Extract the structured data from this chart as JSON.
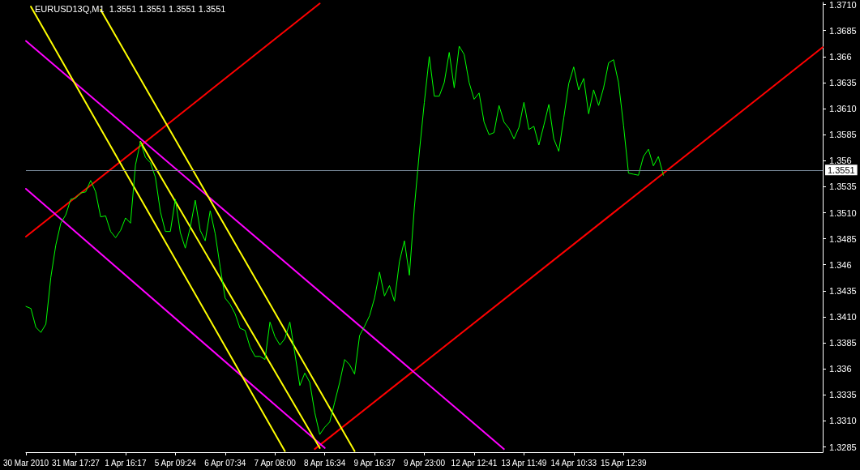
{
  "chart_data": {
    "type": "line",
    "title": "EURUSD13Q,M1  1.3551 1.3551 1.3551 1.3551",
    "categories": [
      "30 Mar 2010",
      null,
      null,
      null,
      null,
      null,
      null,
      null,
      null,
      null,
      "31 Mar 17:27",
      null,
      null,
      null,
      null,
      null,
      null,
      null,
      null,
      null,
      "1 Apr 16:17",
      null,
      null,
      null,
      null,
      null,
      null,
      null,
      null,
      null,
      "5 Apr 09:24",
      null,
      null,
      null,
      null,
      null,
      null,
      null,
      null,
      null,
      "6 Apr 07:34",
      null,
      null,
      null,
      null,
      null,
      null,
      null,
      null,
      null,
      "7 Apr 08:00",
      null,
      null,
      null,
      null,
      null,
      null,
      null,
      null,
      null,
      "8 Apr 16:34",
      null,
      null,
      null,
      null,
      null,
      null,
      null,
      null,
      null,
      "9 Apr 16:37",
      null,
      null,
      null,
      null,
      null,
      null,
      null,
      null,
      null,
      "9 Apr 23:00",
      null,
      null,
      null,
      null,
      null,
      null,
      null,
      null,
      null,
      "12 Apr 12:41",
      null,
      null,
      null,
      null,
      null,
      null,
      null,
      null,
      null,
      "13 Apr 11:49",
      null,
      null,
      null,
      null,
      null,
      null,
      null,
      null,
      null,
      "14 Apr 10:33",
      null,
      null,
      null,
      null,
      null,
      null,
      null,
      null,
      null,
      "15 Apr 12:39",
      null,
      null,
      null,
      null,
      null,
      null,
      null,
      null,
      null,
      null,
      null,
      null,
      null,
      null,
      null,
      null,
      null,
      null,
      null,
      null,
      null,
      null,
      null,
      null,
      null,
      null,
      null,
      null,
      null,
      null,
      null,
      null,
      null,
      null,
      null,
      null,
      null,
      null,
      null,
      null
    ],
    "ylim": [
      1.328,
      1.3712
    ],
    "yticks": [
      1.3285,
      {
        "value": 1.331,
        "label": "1.3310"
      },
      1.3335,
      1.336,
      1.3385,
      {
        "value": 1.341,
        "label": "1.3410"
      },
      1.3435,
      1.346,
      1.3485,
      {
        "value": 1.351,
        "label": "1.3510"
      },
      1.3535,
      1.356,
      1.3585,
      {
        "value": 1.361,
        "label": "1.3610"
      },
      1.3635,
      1.366,
      1.3685,
      {
        "value": 1.371,
        "label": "1.3710"
      }
    ],
    "grid": false,
    "marker": "none",
    "line_style": "solid",
    "ref_lines": [
      {
        "axis": "y",
        "value": 1.3551,
        "label": "1.3551",
        "color": "#778899"
      }
    ],
    "series": [
      {
        "color": "#00ff00",
        "values": [
          1.342,
          1.3418,
          1.34,
          1.3395,
          1.3403,
          1.3448,
          1.3479,
          1.35,
          1.3508,
          1.3523,
          1.3524,
          1.3529,
          1.353,
          1.3541,
          1.353,
          1.3506,
          1.3507,
          1.3492,
          1.3486,
          1.3493,
          1.3505,
          1.35,
          1.3556,
          1.3578,
          1.3563,
          1.3558,
          1.3544,
          1.3511,
          1.3492,
          1.3492,
          1.3523,
          1.3491,
          1.3476,
          1.3496,
          1.3522,
          1.3493,
          1.3483,
          1.3512,
          1.349,
          1.3458,
          1.3428,
          1.3422,
          1.3413,
          1.3399,
          1.3397,
          1.3381,
          1.3372,
          1.3372,
          1.3369,
          1.3405,
          1.3391,
          1.3383,
          1.3389,
          1.3405,
          1.3375,
          1.3344,
          1.3356,
          1.3347,
          1.3318,
          1.3297,
          1.3304,
          1.3309,
          1.3328,
          1.3347,
          1.3369,
          1.3364,
          1.3355,
          1.3392,
          1.3401,
          1.3411,
          1.3428,
          1.3453,
          1.343,
          1.344,
          1.3425,
          1.3463,
          1.3483,
          1.345,
          1.3515,
          1.3568,
          1.3616,
          1.366,
          1.3622,
          1.3622,
          1.3635,
          1.3664,
          1.363,
          1.367,
          1.3662,
          1.3635,
          1.3619,
          1.3625,
          1.3597,
          1.3585,
          1.3587,
          1.3613,
          1.3597,
          1.3591,
          1.3581,
          1.3592,
          1.3616,
          1.359,
          1.3593,
          1.3575,
          1.3594,
          1.3614,
          1.3581,
          1.3569,
          1.3601,
          1.3634,
          1.365,
          1.3628,
          1.3639,
          1.3605,
          1.3628,
          1.3613,
          1.363,
          1.3654,
          1.3657,
          1.3635,
          1.3594,
          1.3548,
          1.3547,
          1.3546,
          1.3564,
          1.3571,
          1.3555,
          1.3564,
          1.3546,
          null,
          null,
          null,
          null,
          null,
          null,
          null,
          null,
          null,
          null,
          null,
          null,
          null,
          null,
          null,
          null,
          null,
          null,
          null,
          null,
          null,
          null,
          null,
          null,
          null,
          null,
          null,
          null,
          null,
          null,
          null,
          null
        ]
      },
      {
        "color": "#ff0000",
        "values": [
          1.3487,
          null,
          null,
          null,
          null,
          null,
          null,
          null,
          null,
          null,
          null,
          null,
          null,
          null,
          null,
          null,
          null,
          null,
          null,
          null,
          null,
          null,
          null,
          null,
          null,
          null,
          null,
          null,
          null,
          null,
          null,
          null,
          null,
          null,
          null,
          null,
          null,
          null,
          null,
          null,
          null,
          null,
          null,
          null,
          null,
          null,
          null,
          null,
          null,
          null,
          null,
          null,
          null,
          null,
          null,
          null,
          null,
          null,
          null,
          1.3711,
          null,
          null,
          null,
          null,
          null,
          null,
          null,
          null,
          null,
          null,
          null,
          null,
          null,
          null,
          null,
          null,
          null,
          null,
          null,
          null,
          null,
          null,
          null,
          null,
          null,
          null,
          null,
          null,
          null,
          null,
          null,
          null,
          null,
          null,
          null,
          null,
          null,
          null,
          null,
          null,
          null,
          null,
          null,
          null,
          null,
          null,
          null,
          null,
          null,
          null,
          null,
          null,
          null,
          null,
          null,
          null,
          null,
          null,
          null,
          null,
          null,
          null,
          null,
          null,
          null,
          null,
          null,
          null,
          null,
          null,
          null,
          null,
          null,
          null,
          null,
          null,
          null,
          null,
          null,
          null,
          null,
          null,
          null,
          null,
          null,
          null,
          null,
          null,
          null,
          null,
          null,
          null,
          null,
          null,
          null,
          null,
          null,
          null,
          null,
          null,
          null
        ]
      },
      {
        "color": "#ff0000",
        "values": [
          null,
          null,
          null,
          null,
          null,
          null,
          null,
          null,
          null,
          null,
          null,
          null,
          null,
          null,
          null,
          null,
          null,
          null,
          null,
          null,
          null,
          null,
          null,
          null,
          null,
          null,
          null,
          null,
          null,
          null,
          null,
          null,
          null,
          null,
          null,
          null,
          null,
          null,
          null,
          null,
          null,
          null,
          null,
          null,
          null,
          null,
          null,
          null,
          null,
          null,
          null,
          null,
          null,
          null,
          null,
          null,
          null,
          null,
          1.3283,
          null,
          null,
          null,
          null,
          null,
          null,
          null,
          null,
          null,
          null,
          null,
          null,
          null,
          null,
          null,
          null,
          null,
          null,
          null,
          null,
          null,
          null,
          null,
          null,
          null,
          null,
          null,
          null,
          null,
          null,
          null,
          null,
          null,
          null,
          null,
          null,
          null,
          null,
          null,
          null,
          null,
          null,
          null,
          null,
          null,
          null,
          null,
          null,
          null,
          null,
          null,
          null,
          null,
          null,
          null,
          null,
          null,
          null,
          null,
          null,
          null,
          null,
          null,
          null,
          null,
          null,
          null,
          null,
          null,
          null,
          null,
          null,
          null,
          null,
          null,
          null,
          null,
          null,
          null,
          null,
          null,
          null,
          null,
          null,
          null,
          null,
          null,
          null,
          null,
          null,
          null,
          null,
          null,
          null,
          null,
          null,
          null,
          null,
          null,
          null,
          null,
          1.3669
        ]
      },
      {
        "color": "#ff00ff",
        "values": [
          1.3675,
          null,
          null,
          null,
          null,
          null,
          null,
          null,
          null,
          null,
          null,
          null,
          null,
          null,
          null,
          null,
          null,
          null,
          null,
          null,
          null,
          null,
          null,
          null,
          null,
          null,
          null,
          null,
          null,
          null,
          null,
          null,
          null,
          null,
          null,
          null,
          null,
          null,
          null,
          null,
          null,
          null,
          null,
          null,
          null,
          null,
          null,
          null,
          null,
          null,
          null,
          null,
          null,
          null,
          null,
          null,
          null,
          null,
          null,
          null,
          null,
          null,
          null,
          null,
          null,
          null,
          null,
          null,
          null,
          null,
          null,
          null,
          null,
          null,
          null,
          null,
          null,
          null,
          null,
          null,
          null,
          null,
          null,
          null,
          null,
          null,
          null,
          null,
          null,
          null,
          null,
          null,
          null,
          null,
          null,
          null,
          1.3283,
          null,
          null,
          null,
          null,
          null,
          null,
          null,
          null,
          null,
          null,
          null,
          null,
          null,
          null,
          null,
          null,
          null,
          null,
          null,
          null,
          null,
          null,
          null,
          null,
          null,
          null,
          null,
          null,
          null,
          null,
          null,
          null,
          null,
          null,
          null,
          null,
          null,
          null,
          null,
          null,
          null,
          null,
          null,
          null,
          null,
          null,
          null,
          null,
          null,
          null,
          null,
          null,
          null,
          null,
          null,
          null,
          null,
          null,
          null,
          null,
          null,
          null,
          null,
          null
        ]
      },
      {
        "color": "#ff00ff",
        "values": [
          1.3533,
          null,
          null,
          null,
          null,
          null,
          null,
          null,
          null,
          null,
          null,
          null,
          null,
          null,
          null,
          null,
          null,
          null,
          null,
          null,
          null,
          null,
          null,
          null,
          null,
          null,
          null,
          null,
          null,
          null,
          null,
          null,
          null,
          null,
          null,
          null,
          null,
          null,
          null,
          null,
          null,
          null,
          null,
          null,
          null,
          null,
          null,
          null,
          null,
          null,
          null,
          null,
          null,
          null,
          null,
          null,
          null,
          null,
          null,
          null,
          1.3284,
          null,
          null,
          null,
          null,
          null,
          null,
          null,
          null,
          null,
          null,
          null,
          null,
          null,
          null,
          null,
          null,
          null,
          null,
          null,
          null,
          null,
          null,
          null,
          null,
          null,
          null,
          null,
          null,
          null,
          null,
          null,
          null,
          null,
          null,
          null,
          null,
          null,
          null,
          null,
          null,
          null,
          null,
          null,
          null,
          null,
          null,
          null,
          null,
          null,
          null,
          null,
          null,
          null,
          null,
          null,
          null,
          null,
          null,
          null,
          null,
          null,
          null,
          null,
          null,
          null,
          null,
          null,
          null,
          null,
          null,
          null,
          null,
          null,
          null,
          null,
          null,
          null,
          null,
          null,
          null,
          null,
          null,
          null,
          null,
          null,
          null,
          null,
          null,
          null,
          null,
          null,
          null,
          null,
          null,
          null,
          null,
          null,
          null,
          null,
          null
        ]
      },
      {
        "color": "#ffff00",
        "values": [
          null,
          1.3708,
          null,
          null,
          null,
          null,
          null,
          null,
          null,
          null,
          null,
          null,
          null,
          null,
          null,
          null,
          null,
          null,
          null,
          null,
          null,
          null,
          null,
          null,
          null,
          null,
          null,
          null,
          null,
          null,
          null,
          null,
          null,
          null,
          null,
          null,
          null,
          null,
          null,
          null,
          null,
          null,
          null,
          null,
          null,
          null,
          null,
          null,
          null,
          null,
          null,
          null,
          1.3281,
          null,
          null,
          null,
          null,
          null,
          null,
          null,
          null,
          null,
          null,
          null,
          null,
          null,
          null,
          null,
          null,
          null,
          null,
          null,
          null,
          null,
          null,
          null,
          null,
          null,
          null,
          null,
          null,
          null,
          null,
          null,
          null,
          null,
          null,
          null,
          null,
          null,
          null,
          null,
          null,
          null,
          null,
          null,
          null,
          null,
          null,
          null,
          null,
          null,
          null,
          null,
          null,
          null,
          null,
          null,
          null,
          null,
          null,
          null,
          null,
          null,
          null,
          null,
          null,
          null,
          null,
          null,
          null,
          null,
          null,
          null,
          null,
          null,
          null,
          null,
          null,
          null,
          null,
          null,
          null,
          null,
          null,
          null,
          null,
          null,
          null,
          null,
          null,
          null,
          null,
          null,
          null,
          null,
          null,
          null,
          null,
          null,
          null,
          null,
          null,
          null,
          null,
          null,
          null,
          null,
          null,
          null,
          null
        ]
      },
      {
        "color": "#ffff00",
        "values": [
          null,
          null,
          null,
          null,
          null,
          null,
          null,
          null,
          null,
          null,
          null,
          null,
          null,
          null,
          null,
          null,
          null,
          null,
          null,
          null,
          null,
          null,
          null,
          1.3578,
          null,
          null,
          null,
          null,
          null,
          null,
          null,
          null,
          null,
          null,
          null,
          null,
          null,
          null,
          null,
          null,
          null,
          null,
          null,
          null,
          null,
          null,
          null,
          null,
          null,
          null,
          null,
          null,
          null,
          null,
          null,
          null,
          null,
          null,
          null,
          1.3284,
          null,
          null,
          null,
          null,
          null,
          null,
          null,
          null,
          null,
          null,
          null,
          null,
          null,
          null,
          null,
          null,
          null,
          null,
          null,
          null,
          null,
          null,
          null,
          null,
          null,
          null,
          null,
          null,
          null,
          null,
          null,
          null,
          null,
          null,
          null,
          null,
          null,
          null,
          null,
          null,
          null,
          null,
          null,
          null,
          null,
          null,
          null,
          null,
          null,
          null,
          null,
          null,
          null,
          null,
          null,
          null,
          null,
          null,
          null,
          null,
          null,
          null,
          null,
          null,
          null,
          null,
          null,
          null,
          null,
          null,
          null,
          null,
          null,
          null,
          null,
          null,
          null,
          null,
          null,
          null,
          null,
          null,
          null,
          null,
          null,
          null,
          null,
          null,
          null,
          null,
          null,
          null,
          null,
          null,
          null,
          null,
          null,
          null,
          null,
          null,
          null
        ]
      },
      {
        "color": "#ffff00",
        "values": [
          null,
          null,
          null,
          null,
          null,
          null,
          null,
          null,
          null,
          null,
          null,
          null,
          null,
          null,
          null,
          1.3705,
          null,
          null,
          null,
          null,
          null,
          null,
          null,
          null,
          null,
          null,
          null,
          null,
          null,
          null,
          null,
          null,
          null,
          null,
          null,
          null,
          null,
          null,
          null,
          null,
          null,
          null,
          null,
          null,
          null,
          null,
          null,
          null,
          null,
          null,
          null,
          null,
          null,
          null,
          null,
          null,
          null,
          null,
          null,
          null,
          null,
          null,
          null,
          null,
          null,
          null,
          1.3281,
          null,
          null,
          null,
          null,
          null,
          null,
          null,
          null,
          null,
          null,
          null,
          null,
          null,
          null,
          null,
          null,
          null,
          null,
          null,
          null,
          null,
          null,
          null,
          null,
          null,
          null,
          null,
          null,
          null,
          null,
          null,
          null,
          null,
          null,
          null,
          null,
          null,
          null,
          null,
          null,
          null,
          null,
          null,
          null,
          null,
          null,
          null,
          null,
          null,
          null,
          null,
          null,
          null,
          null,
          null,
          null,
          null,
          null,
          null,
          null,
          null,
          null,
          null,
          null,
          null,
          null,
          null,
          null,
          null,
          null,
          null,
          null,
          null,
          null,
          null,
          null,
          null,
          null,
          null,
          null,
          null,
          null,
          null,
          null,
          null,
          null,
          null,
          null,
          null,
          null,
          null,
          null,
          null,
          null
        ]
      }
    ]
  }
}
